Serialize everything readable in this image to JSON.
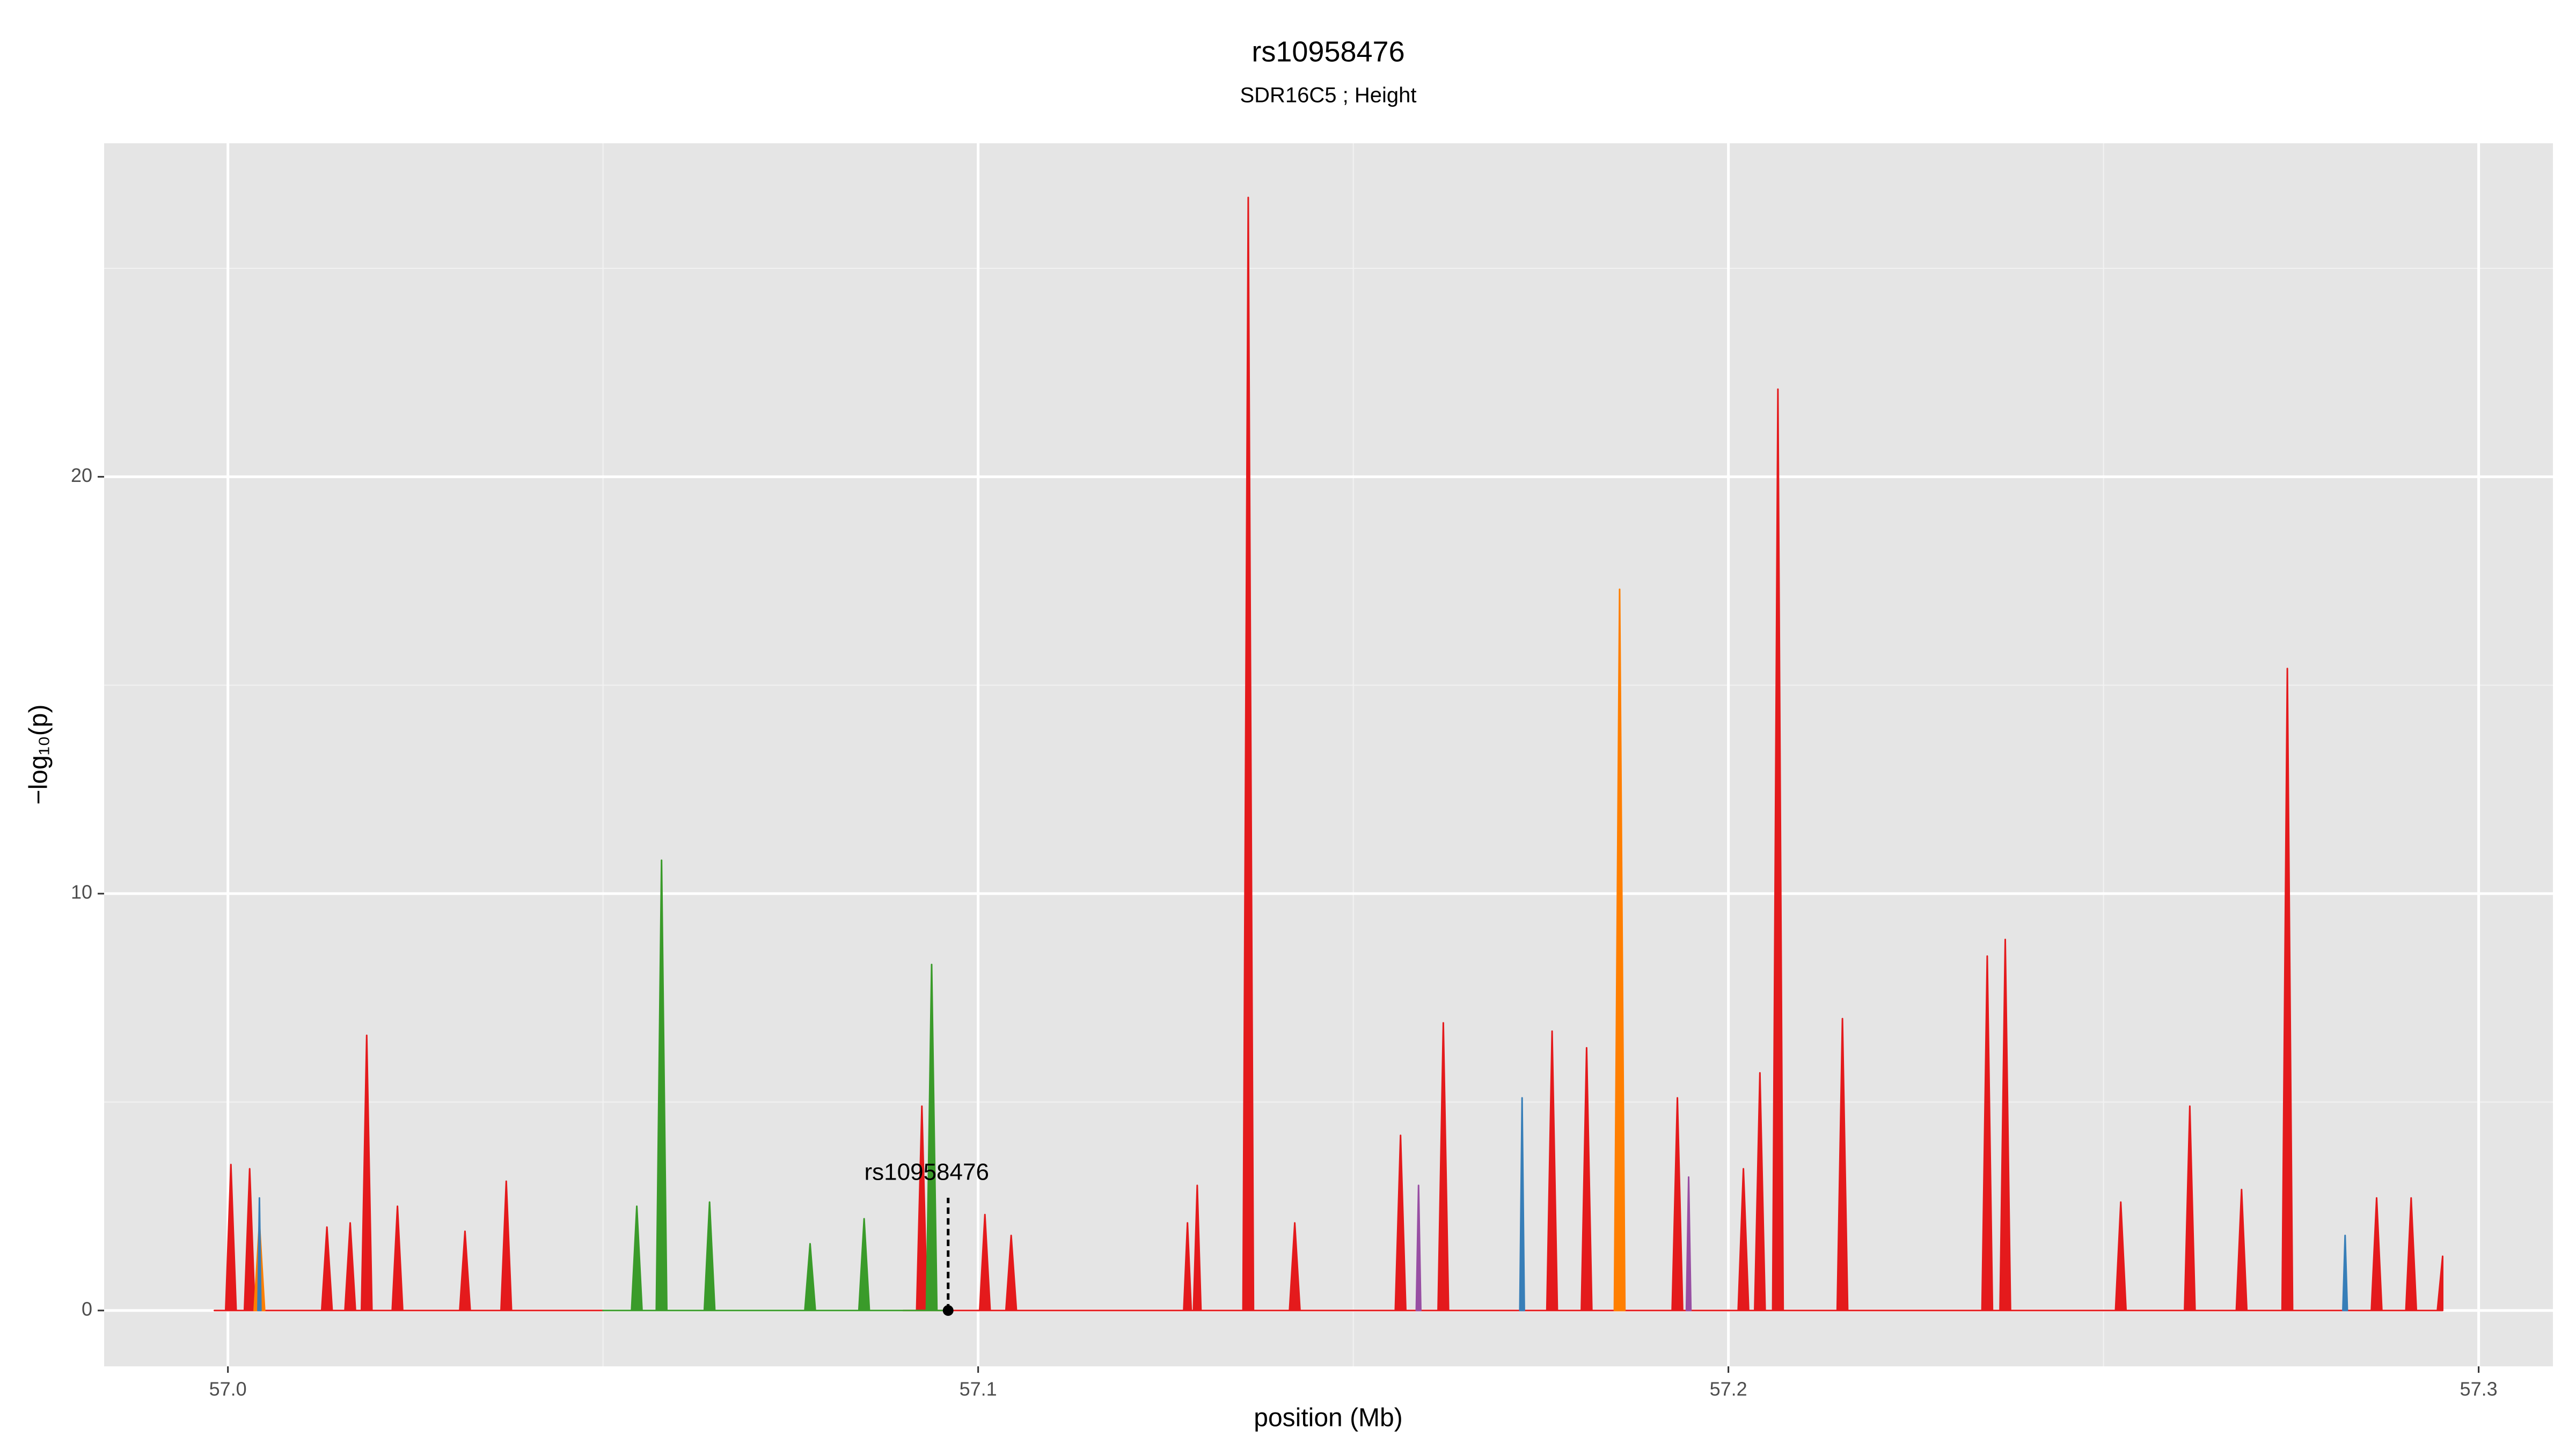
{
  "chart_data": {
    "type": "area",
    "title": "rs10958476",
    "subtitle": "SDR16C5 ; Height",
    "x_label": "position (Mb)",
    "y_label": "−log₁₀(p)",
    "xlim": [
      56.9835,
      57.3099
    ],
    "ylim": [
      -1.34,
      28.0
    ],
    "xticks": [
      {
        "value": 57,
        "label": "57.0"
      },
      57.1,
      57.2,
      57.3
    ],
    "yticks": [
      0,
      10,
      20
    ],
    "x_minor_ticks": [
      57.05,
      57.15,
      57.25
    ],
    "y_minor_ticks": [
      5,
      15,
      25
    ],
    "grid": true,
    "annotation": {
      "text": "rs10958476",
      "x": 57.096,
      "y": 0
    },
    "series": [
      {
        "color": "#e41a1c",
        "x": [
          56.9982,
          56.9997,
          57.0004,
          57.0011,
          57.0022,
          57.0029,
          57.0036,
          57.0125,
          57.0132,
          57.0139,
          57.0156,
          57.0163,
          57.017,
          57.0178,
          57.0185,
          57.0192,
          57.0219,
          57.0226,
          57.0233,
          57.0309,
          57.0316,
          57.0323,
          57.0364,
          57.0371,
          57.0378,
          57.05,
          null,
          57.09,
          57.0918,
          57.0925,
          57.0932,
          57.1002,
          57.1009,
          57.1016,
          57.1037,
          57.1044,
          57.1051,
          57.1274,
          57.1279,
          57.1284,
          57.1287,
          57.1292,
          57.1297,
          57.1353,
          57.136,
          57.1367,
          57.1415,
          57.1422,
          57.1429,
          57.1556,
          57.1563,
          57.157,
          57.1613,
          57.162,
          57.1627,
          57.1758,
          57.1765,
          57.1772,
          57.1804,
          57.1811,
          57.1818,
          57.1925,
          57.1932,
          57.1939,
          57.2013,
          57.202,
          57.2027,
          57.2035,
          57.2042,
          57.2049,
          57.2059,
          57.2066,
          57.2073,
          57.2145,
          57.2152,
          57.2159,
          57.2338,
          57.2345,
          57.2352,
          57.2362,
          57.2369,
          57.2376,
          57.2516,
          57.2523,
          57.253,
          57.2608,
          57.2615,
          57.2622,
          57.2677,
          57.2684,
          57.2691,
          57.2738,
          57.2745,
          57.2752,
          57.2857,
          57.2864,
          57.2871,
          57.2903,
          57.291,
          57.2917,
          57.2945,
          57.2952
        ],
        "values": [
          0,
          0,
          3.5,
          0,
          0,
          3.4,
          0,
          0,
          2.0,
          0,
          0,
          2.1,
          0,
          0,
          6.6,
          0,
          0,
          2.5,
          0,
          0,
          1.9,
          0,
          0,
          3.1,
          0,
          0,
          null,
          0,
          0,
          4.9,
          0,
          0,
          2.3,
          0,
          0,
          1.8,
          0,
          0,
          2.1,
          0,
          0,
          3.0,
          0,
          0,
          26.7,
          0,
          0,
          2.1,
          0,
          0,
          4.2,
          0,
          0,
          6.9,
          0,
          0,
          6.7,
          0,
          0,
          6.3,
          0,
          0,
          5.1,
          0,
          0,
          3.4,
          0,
          0,
          5.7,
          0,
          0,
          22.1,
          0,
          0,
          7.0,
          0,
          0,
          8.5,
          0,
          0,
          8.9,
          0,
          0,
          2.6,
          0,
          0,
          4.9,
          0,
          0,
          2.9,
          0,
          0,
          15.4,
          0,
          0,
          2.7,
          0,
          0,
          2.7,
          0,
          0,
          1.3
        ]
      },
      {
        "color": "#3a9b2a",
        "x": [
          57.05,
          57.0538,
          57.0545,
          57.0552,
          57.0571,
          57.0578,
          57.0585,
          57.0635,
          57.0642,
          57.0649,
          57.0769,
          57.0776,
          57.0783,
          57.0841,
          57.0848,
          57.0855,
          57.0931,
          57.0938,
          57.0945,
          57.096
        ],
        "values": [
          0,
          0,
          2.5,
          0,
          0,
          10.8,
          0,
          0,
          2.6,
          0,
          0,
          1.6,
          0,
          0,
          2.2,
          0,
          0,
          8.3,
          0,
          0
        ]
      },
      {
        "color": "#ff7f00",
        "x": [
          57.0035,
          57.0042,
          57.0049,
          null,
          57.1848,
          57.1855,
          57.1862
        ],
        "values": [
          0,
          2.1,
          0,
          null,
          0,
          17.3,
          0
        ]
      },
      {
        "color": "#377eb8",
        "x": [
          57.004,
          57.0042,
          57.0044,
          null,
          57.1722,
          57.1725,
          57.1728,
          null,
          57.2819,
          57.2822,
          57.2825
        ],
        "values": [
          0,
          2.7,
          0,
          null,
          0,
          5.1,
          0,
          null,
          0,
          1.8,
          0
        ]
      },
      {
        "color": "#984ea3",
        "x": [
          57.1584,
          57.1587,
          57.159,
          null,
          57.1944,
          57.1947,
          57.195
        ],
        "values": [
          0,
          3.0,
          0,
          null,
          0,
          3.2,
          0
        ]
      }
    ]
  }
}
